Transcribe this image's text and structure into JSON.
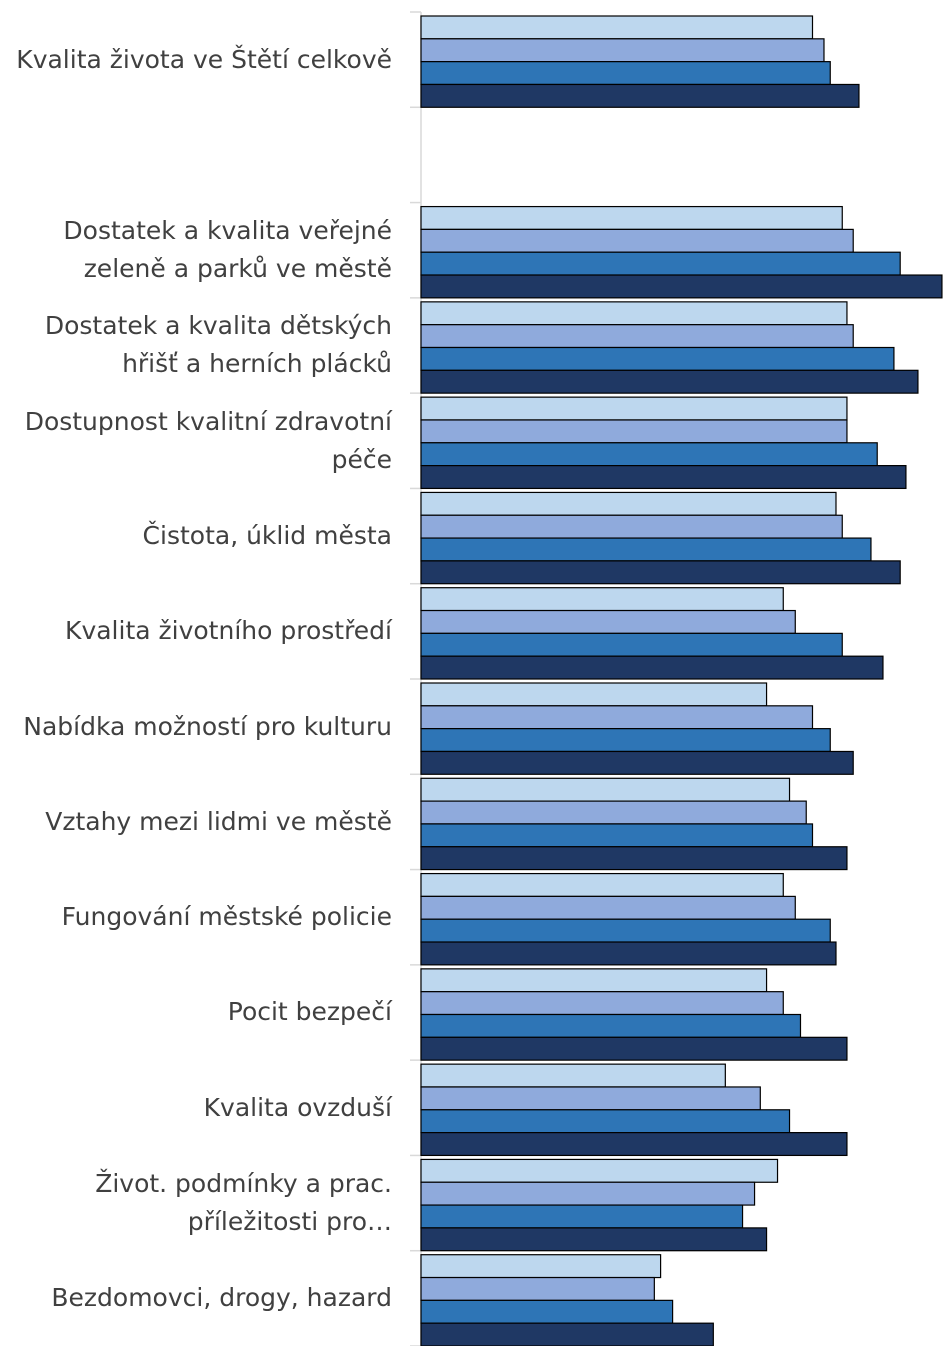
{
  "chart_data": {
    "type": "barh",
    "categories": [
      "Kvalita života ve Štětí celkově",
      null,
      "Dostatek a kvalita veřejné zeleně a parků ve městě",
      "Dostatek a kvalita dětských hřišť a herních plácků",
      "Dostupnost kvalitní zdravotní péče",
      "Čistota, úklid města",
      "Kvalita životního prostředí",
      "Nabídka možností pro kulturu",
      "Vztahy mezi lidmi ve městě",
      "Fungování městské policie",
      "Pocit bezpečí",
      "Kvalita ovzduší",
      "Život. podmínky a prac. příležitosti pro…",
      "Bezdomovci, drogy, hazard"
    ],
    "series": [
      {
        "color": "#bdd7ee",
        "values": [
          75.0,
          null,
          80.7,
          81.6,
          81.6,
          79.5,
          69.4,
          66.2,
          70.6,
          69.4,
          66.2,
          58.3,
          68.3,
          45.9
        ]
      },
      {
        "color": "#8faadc",
        "values": [
          77.2,
          null,
          82.8,
          82.8,
          81.6,
          80.7,
          71.7,
          75.0,
          73.8,
          71.7,
          69.4,
          65.0,
          63.9,
          44.7
        ]
      },
      {
        "color": "#2e75b6",
        "values": [
          78.4,
          null,
          91.8,
          90.6,
          87.4,
          86.2,
          80.7,
          78.4,
          75.0,
          78.4,
          72.7,
          70.6,
          61.6,
          48.2
        ]
      },
      {
        "color": "#1f3864",
        "values": [
          83.9,
          null,
          99.8,
          95.2,
          92.9,
          91.8,
          88.5,
          82.8,
          81.6,
          79.5,
          81.6,
          81.6,
          66.2,
          56.0
        ]
      }
    ],
    "xlim": [
      0,
      100
    ]
  }
}
